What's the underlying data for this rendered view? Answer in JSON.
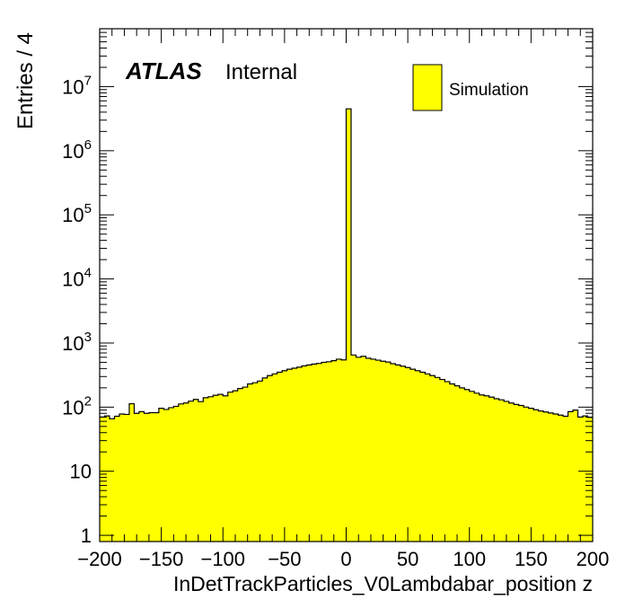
{
  "labels": {
    "atlas": "ATLAS",
    "status": "Internal",
    "legend_entry": "Simulation",
    "ylabel": "Entries / 4",
    "xlabel": "InDetTrackParticles_V0Lambdabar_position z"
  },
  "colors": {
    "fill": "#ffff00",
    "line": "#000000",
    "background": "#ffffff"
  },
  "chart_data": {
    "type": "bar",
    "histogram": true,
    "bin_width": 4,
    "xlim": [
      -200,
      200
    ],
    "ylim": [
      0.8,
      80000000
    ],
    "yscale": "log",
    "grid": false,
    "legend_position": "top-right",
    "xticks": [
      -200,
      -150,
      -100,
      -50,
      0,
      50,
      100,
      150,
      200
    ],
    "xtick_labels": [
      "−200",
      "−150",
      "−100",
      "−50",
      "0",
      "50",
      "100",
      "150",
      "200"
    ],
    "yticks": [
      {
        "value": 1,
        "base": "1",
        "exp": ""
      },
      {
        "value": 10,
        "base": "10",
        "exp": ""
      },
      {
        "value": 100,
        "base": "10",
        "exp": "2"
      },
      {
        "value": 1000,
        "base": "10",
        "exp": "3"
      },
      {
        "value": 10000,
        "base": "10",
        "exp": "4"
      },
      {
        "value": 100000,
        "base": "10",
        "exp": "5"
      },
      {
        "value": 1000000,
        "base": "10",
        "exp": "6"
      },
      {
        "value": 10000000,
        "base": "10",
        "exp": "7"
      }
    ],
    "bin_edges_start": -200,
    "values": [
      70,
      73,
      66,
      72,
      78,
      77,
      113,
      80,
      85,
      80,
      82,
      82,
      96,
      92,
      98,
      103,
      112,
      116,
      124,
      132,
      122,
      140,
      145,
      153,
      158,
      150,
      171,
      180,
      195,
      205,
      230,
      240,
      255,
      285,
      310,
      330,
      350,
      370,
      390,
      405,
      420,
      440,
      455,
      470,
      480,
      500,
      510,
      530,
      560,
      545,
      4500000,
      650,
      600,
      620,
      580,
      560,
      540,
      520,
      505,
      475,
      455,
      435,
      415,
      390,
      370,
      350,
      330,
      310,
      290,
      270,
      250,
      230,
      215,
      200,
      188,
      176,
      165,
      155,
      150,
      143,
      135,
      130,
      123,
      116,
      110,
      106,
      100,
      96,
      91,
      87,
      84,
      81,
      78,
      75,
      72,
      85,
      90,
      70,
      73,
      69
    ]
  }
}
